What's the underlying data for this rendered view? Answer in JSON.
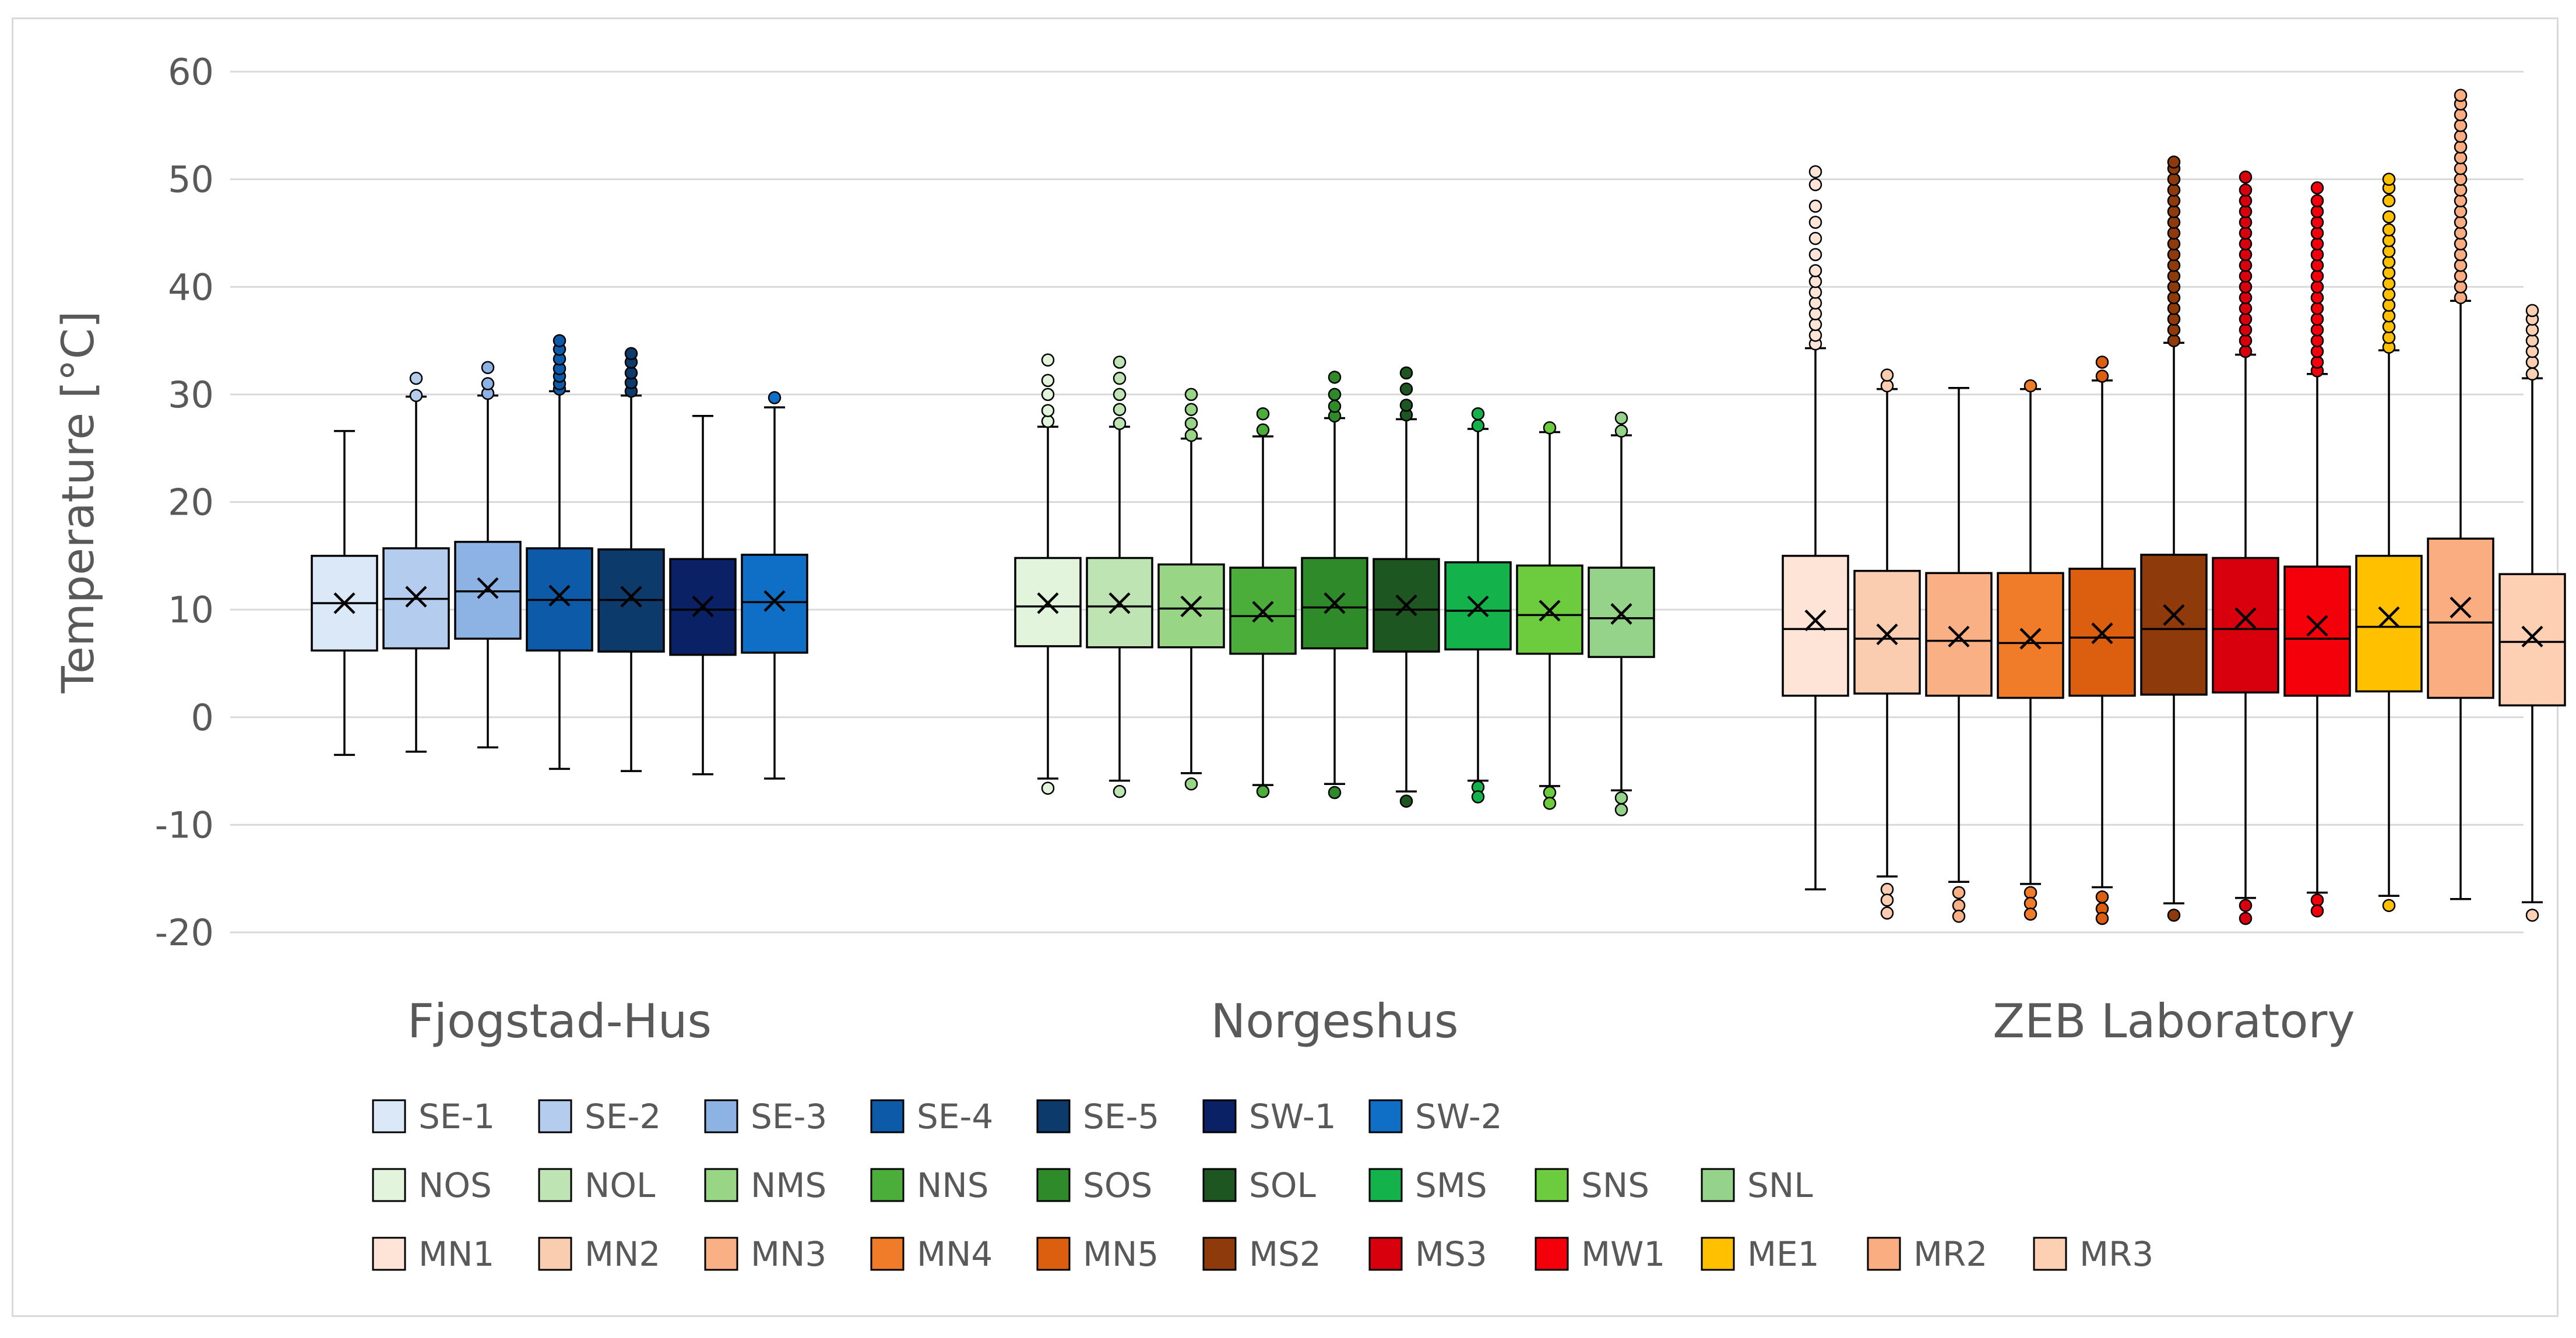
{
  "chart_data": {
    "type": "boxplot",
    "title": "",
    "ylabel": "Temperature [°C]",
    "xlabel": "",
    "ylim": [
      -20,
      60
    ],
    "yticks": [
      -20,
      -10,
      0,
      10,
      20,
      30,
      40,
      50,
      60
    ],
    "grid": true,
    "legend_position": "bottom",
    "groups": [
      {
        "name": "Fjogstad-Hus",
        "series": [
          {
            "name": "SE-1",
            "color": "#dbe8f7",
            "q1": 6.2,
            "median": 10.6,
            "q3": 15.0,
            "mean": 10.6,
            "whisker_low": -3.5,
            "whisker_high": 26.6,
            "outliers_high": [],
            "outliers_low": []
          },
          {
            "name": "SE-2",
            "color": "#b4cdee",
            "q1": 6.4,
            "median": 11.0,
            "q3": 15.7,
            "mean": 11.2,
            "whisker_low": -3.2,
            "whisker_high": 29.8,
            "outliers_high": [
              29.9,
              31.5
            ],
            "outliers_low": []
          },
          {
            "name": "SE-3",
            "color": "#8db2e4",
            "q1": 7.3,
            "median": 11.7,
            "q3": 16.3,
            "mean": 12.0,
            "whisker_low": -2.8,
            "whisker_high": 29.9,
            "outliers_high": [
              30.1,
              31.0,
              32.5
            ],
            "outliers_low": []
          },
          {
            "name": "SE-4",
            "color": "#0d5aa8",
            "q1": 6.2,
            "median": 10.9,
            "q3": 15.7,
            "mean": 11.3,
            "whisker_low": -4.8,
            "whisker_high": 30.3,
            "outliers_high": [
              30.5,
              31.0,
              31.7,
              32.4,
              33.3,
              34.2,
              35.0
            ],
            "outliers_low": []
          },
          {
            "name": "SE-5",
            "color": "#0b3a6b",
            "q1": 6.1,
            "median": 10.9,
            "q3": 15.6,
            "mean": 11.2,
            "whisker_low": -5.0,
            "whisker_high": 29.9,
            "outliers_high": [
              30.3,
              31.1,
              32.0,
              33.0,
              33.8
            ],
            "outliers_low": []
          },
          {
            "name": "SW-1",
            "color": "#0a2165",
            "q1": 5.8,
            "median": 10.0,
            "q3": 14.7,
            "mean": 10.3,
            "whisker_low": -5.3,
            "whisker_high": 28.0,
            "outliers_high": [],
            "outliers_low": []
          },
          {
            "name": "SW-2",
            "color": "#0f6fc6",
            "q1": 6.0,
            "median": 10.7,
            "q3": 15.1,
            "mean": 10.8,
            "whisker_low": -5.7,
            "whisker_high": 28.8,
            "outliers_high": [
              29.7
            ],
            "outliers_low": []
          }
        ]
      },
      {
        "name": "Norgeshus",
        "series": [
          {
            "name": "NOS",
            "color": "#e3f4dc",
            "q1": 6.6,
            "median": 10.3,
            "q3": 14.8,
            "mean": 10.6,
            "whisker_low": -5.7,
            "whisker_high": 27.0,
            "outliers_high": [
              27.5,
              28.5,
              30.0,
              31.3,
              33.2
            ],
            "outliers_low": [
              -6.6
            ]
          },
          {
            "name": "NOL",
            "color": "#bfe4b3",
            "q1": 6.5,
            "median": 10.3,
            "q3": 14.8,
            "mean": 10.6,
            "whisker_low": -5.9,
            "whisker_high": 27.0,
            "outliers_high": [
              27.3,
              28.6,
              30.0,
              31.5,
              33.0
            ],
            "outliers_low": [
              -6.9
            ]
          },
          {
            "name": "NMS",
            "color": "#98d585",
            "q1": 6.5,
            "median": 10.1,
            "q3": 14.2,
            "mean": 10.3,
            "whisker_low": -5.2,
            "whisker_high": 25.9,
            "outliers_high": [
              26.2,
              27.3,
              28.6,
              30.0
            ],
            "outliers_low": [
              -6.2
            ]
          },
          {
            "name": "NNS",
            "color": "#4bae3a",
            "q1": 5.9,
            "median": 9.4,
            "q3": 13.9,
            "mean": 9.8,
            "whisker_low": -6.3,
            "whisker_high": 26.1,
            "outliers_high": [
              26.7,
              28.2
            ],
            "outliers_low": [
              -6.9
            ]
          },
          {
            "name": "SOS",
            "color": "#2f8a2a",
            "q1": 6.4,
            "median": 10.2,
            "q3": 14.8,
            "mean": 10.6,
            "whisker_low": -6.2,
            "whisker_high": 27.8,
            "outliers_high": [
              28.0,
              28.9,
              30.0,
              31.6
            ],
            "outliers_low": [
              -7.0
            ]
          },
          {
            "name": "SOL",
            "color": "#1d5620",
            "q1": 6.1,
            "median": 10.0,
            "q3": 14.7,
            "mean": 10.4,
            "whisker_low": -6.9,
            "whisker_high": 27.7,
            "outliers_high": [
              28.1,
              29.0,
              30.5,
              32.0
            ],
            "outliers_low": [
              -7.8
            ]
          },
          {
            "name": "SMS",
            "color": "#13b24b",
            "q1": 6.3,
            "median": 9.9,
            "q3": 14.4,
            "mean": 10.3,
            "whisker_low": -5.9,
            "whisker_high": 26.8,
            "outliers_high": [
              27.1,
              28.2
            ],
            "outliers_low": [
              -6.5,
              -7.4
            ]
          },
          {
            "name": "SNS",
            "color": "#6ccc3d",
            "q1": 5.9,
            "median": 9.5,
            "q3": 14.1,
            "mean": 9.9,
            "whisker_low": -6.4,
            "whisker_high": 26.5,
            "outliers_high": [
              26.9
            ],
            "outliers_low": [
              -7.0,
              -8.0
            ]
          },
          {
            "name": "SNL",
            "color": "#95d28a",
            "q1": 5.6,
            "median": 9.2,
            "q3": 13.9,
            "mean": 9.6,
            "whisker_low": -6.8,
            "whisker_high": 26.2,
            "outliers_high": [
              26.6,
              27.8
            ],
            "outliers_low": [
              -7.5,
              -8.6
            ]
          }
        ]
      },
      {
        "name": "ZEB Laboratory",
        "series": [
          {
            "name": "MN1",
            "color": "#fde4d6",
            "q1": 2.0,
            "median": 8.2,
            "q3": 15.0,
            "mean": 9.0,
            "whisker_low": -16.0,
            "whisker_high": 34.3,
            "outliers_high": [
              34.7,
              35.5,
              36.5,
              37.5,
              38.5,
              39.5,
              40.5,
              41.5,
              43.0,
              44.5,
              46.0,
              47.5,
              49.5,
              50.7
            ],
            "outliers_low": []
          },
          {
            "name": "MN2",
            "color": "#fbcdb0",
            "q1": 2.2,
            "median": 7.3,
            "q3": 13.6,
            "mean": 7.7,
            "whisker_low": -14.8,
            "whisker_high": 30.5,
            "outliers_high": [
              30.8,
              31.8
            ],
            "outliers_low": [
              -16.0,
              -17.0,
              -18.2
            ]
          },
          {
            "name": "MN3",
            "color": "#f9b085",
            "q1": 2.0,
            "median": 7.1,
            "q3": 13.4,
            "mean": 7.5,
            "whisker_low": -15.3,
            "whisker_high": 30.6,
            "outliers_high": [],
            "outliers_low": [
              -16.3,
              -17.5,
              -18.5
            ]
          },
          {
            "name": "MN4",
            "color": "#f07c2a",
            "q1": 1.8,
            "median": 6.9,
            "q3": 13.4,
            "mean": 7.3,
            "whisker_low": -15.5,
            "whisker_high": 30.5,
            "outliers_high": [
              30.8
            ],
            "outliers_low": [
              -16.3,
              -17.3,
              -18.3
            ]
          },
          {
            "name": "MN5",
            "color": "#dc5f10",
            "q1": 2.0,
            "median": 7.4,
            "q3": 13.8,
            "mean": 7.8,
            "whisker_low": -15.8,
            "whisker_high": 31.3,
            "outliers_high": [
              31.7,
              33.0
            ],
            "outliers_low": [
              -16.7,
              -17.8,
              -18.7
            ]
          },
          {
            "name": "MS2",
            "color": "#8e3a0a",
            "q1": 2.1,
            "median": 8.2,
            "q3": 15.1,
            "mean": 9.5,
            "whisker_low": -17.3,
            "whisker_high": 34.8,
            "outliers_high": [
              35.0,
              36.0,
              37.0,
              38.0,
              39.0,
              40.0,
              41.0,
              42.0,
              43.0,
              44.0,
              45.0,
              46.0,
              47.0,
              48.0,
              49.0,
              50.0,
              51.0,
              51.6
            ],
            "outliers_low": [
              -18.4
            ]
          },
          {
            "name": "MS3",
            "color": "#d9000e",
            "q1": 2.3,
            "median": 8.2,
            "q3": 14.8,
            "mean": 9.2,
            "whisker_low": -16.8,
            "whisker_high": 33.7,
            "outliers_high": [
              34.0,
              35.0,
              36.0,
              37.0,
              38.0,
              39.0,
              40.0,
              41.0,
              42.0,
              43.0,
              44.0,
              45.0,
              46.0,
              47.0,
              48.0,
              49.0,
              50.2
            ],
            "outliers_low": [
              -17.5,
              -18.7
            ]
          },
          {
            "name": "MW1",
            "color": "#f4000b",
            "q1": 2.0,
            "median": 7.3,
            "q3": 14.0,
            "mean": 8.5,
            "whisker_low": -16.3,
            "whisker_high": 31.9,
            "outliers_high": [
              32.2,
              33.0,
              34.0,
              35.0,
              36.0,
              37.0,
              38.0,
              39.0,
              40.0,
              41.0,
              42.0,
              43.0,
              44.0,
              45.0,
              46.0,
              47.0,
              48.0,
              49.2
            ],
            "outliers_low": [
              -17.0,
              -18.0
            ]
          },
          {
            "name": "ME1",
            "color": "#ffc000",
            "q1": 2.4,
            "median": 8.4,
            "q3": 15.0,
            "mean": 9.3,
            "whisker_low": -16.6,
            "whisker_high": 34.1,
            "outliers_high": [
              34.4,
              35.3,
              36.3,
              37.3,
              38.3,
              39.3,
              40.3,
              41.3,
              42.3,
              43.3,
              44.3,
              45.3,
              46.5,
              48.0,
              49.2,
              50.0
            ],
            "outliers_low": [
              -17.5
            ]
          },
          {
            "name": "MR2",
            "color": "#f9ad80",
            "q1": 1.8,
            "median": 8.8,
            "q3": 16.6,
            "mean": 10.2,
            "whisker_low": -16.9,
            "whisker_high": 38.7,
            "outliers_high": [
              39.0,
              40.0,
              41.0,
              42.0,
              43.0,
              44.0,
              45.0,
              46.0,
              47.0,
              48.0,
              49.0,
              50.0,
              51.0,
              52.0,
              53.0,
              54.0,
              55.0,
              56.0,
              57.0,
              57.8
            ],
            "outliers_low": []
          },
          {
            "name": "MR3",
            "color": "#fdd0b4",
            "q1": 1.1,
            "median": 7.0,
            "q3": 13.3,
            "mean": 7.5,
            "whisker_low": -17.2,
            "whisker_high": 31.5,
            "outliers_high": [
              31.9,
              33.0,
              34.0,
              35.0,
              36.0,
              37.0,
              37.8
            ],
            "outliers_low": [
              -18.4
            ]
          }
        ]
      }
    ]
  }
}
